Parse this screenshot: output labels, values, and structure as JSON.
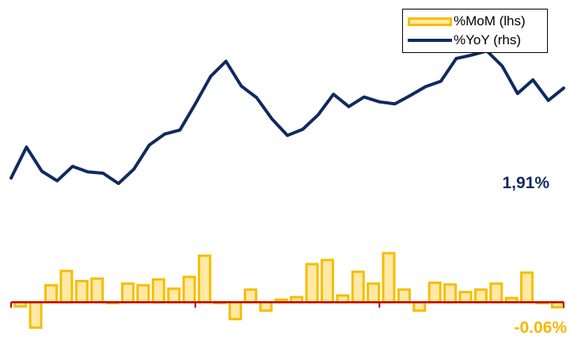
{
  "legend": {
    "mom_label": "%MoM (lhs)",
    "yoy_label": "%YoY (rhs)"
  },
  "chart_data": {
    "type": "bar+line",
    "series": [
      {
        "name": "%MoM (lhs)",
        "type": "bar",
        "axis": "left",
        "color": "#F6BE00",
        "fill": "#FFE9A6",
        "values": [
          -0.05,
          -0.3,
          0.2,
          0.37,
          0.25,
          0.28,
          -0.01,
          0.22,
          0.2,
          0.27,
          0.16,
          0.3,
          0.55,
          0.0,
          -0.2,
          0.15,
          -0.1,
          0.03,
          0.06,
          0.45,
          0.5,
          0.08,
          0.36,
          0.22,
          0.58,
          0.15,
          -0.1,
          0.23,
          0.21,
          0.12,
          0.15,
          0.22,
          0.05,
          0.35,
          -0.01,
          -0.06
        ]
      },
      {
        "name": "%YoY (rhs)",
        "type": "line",
        "axis": "right",
        "color": "#0F2A5F",
        "values": [
          0.6,
          1.05,
          0.7,
          0.56,
          0.77,
          0.69,
          0.67,
          0.52,
          0.73,
          1.08,
          1.24,
          1.3,
          1.68,
          2.08,
          2.3,
          1.94,
          1.77,
          1.46,
          1.22,
          1.31,
          1.52,
          1.82,
          1.64,
          1.78,
          1.71,
          1.68,
          1.8,
          1.93,
          2.01,
          2.34,
          2.39,
          2.45,
          2.23,
          1.83,
          2.03,
          1.73,
          1.91
        ]
      }
    ],
    "mom_axis_range": [
      -0.4,
      3.5
    ],
    "yoy_axis_range": [
      -1.7,
      3.1
    ],
    "end_labels": {
      "yoy": "1,91%",
      "mom": "-0.06%"
    },
    "colors": {
      "bar_edge": "#F6BE00",
      "bar_fill": "#FFE9A6",
      "line": "#0F2A5F",
      "zero_axis": "#C00000",
      "mom_label": "#F5B800",
      "yoy_label": "#0F2A5F"
    },
    "legend_position": "top-right",
    "grid": false
  }
}
